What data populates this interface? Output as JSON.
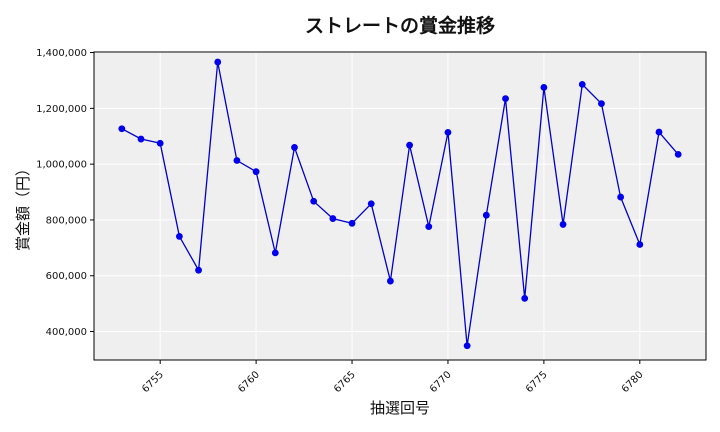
{
  "chart_data": {
    "type": "line",
    "title": "ストレートの賞金推移",
    "xlabel": "抽選回号",
    "ylabel": "賞金額（円）",
    "xlim": [
      6751.55,
      6783.45
    ],
    "ylim": [
      298000,
      1402000
    ],
    "xticks": [
      6755,
      6760,
      6765,
      6770,
      6775,
      6780
    ],
    "yticks": [
      400000,
      600000,
      800000,
      1000000,
      1200000,
      1400000
    ],
    "ytick_labels": [
      "400,000",
      "600,000",
      "800,000",
      "1,000,000",
      "1,200,000",
      "1,400,000"
    ],
    "grid": true,
    "series": [
      {
        "color": "#0000cc",
        "marker_color": "#0000ee",
        "x": [
          6753,
          6754,
          6755,
          6756,
          6757,
          6758,
          6759,
          6760,
          6761,
          6762,
          6763,
          6764,
          6765,
          6766,
          6767,
          6768,
          6769,
          6770,
          6771,
          6772,
          6773,
          6774,
          6775,
          6776,
          6777,
          6778,
          6779,
          6780,
          6781,
          6782
        ],
        "y": [
          1127000,
          1090000,
          1075000,
          741000,
          620000,
          1366000,
          1013000,
          973000,
          682000,
          1060000,
          867000,
          805000,
          788000,
          858000,
          581000,
          1068000,
          776000,
          1114000,
          349000,
          817000,
          1235000,
          519000,
          1275000,
          784000,
          1286000,
          1217000,
          882000,
          712000,
          1115000,
          1035000
        ]
      }
    ]
  }
}
